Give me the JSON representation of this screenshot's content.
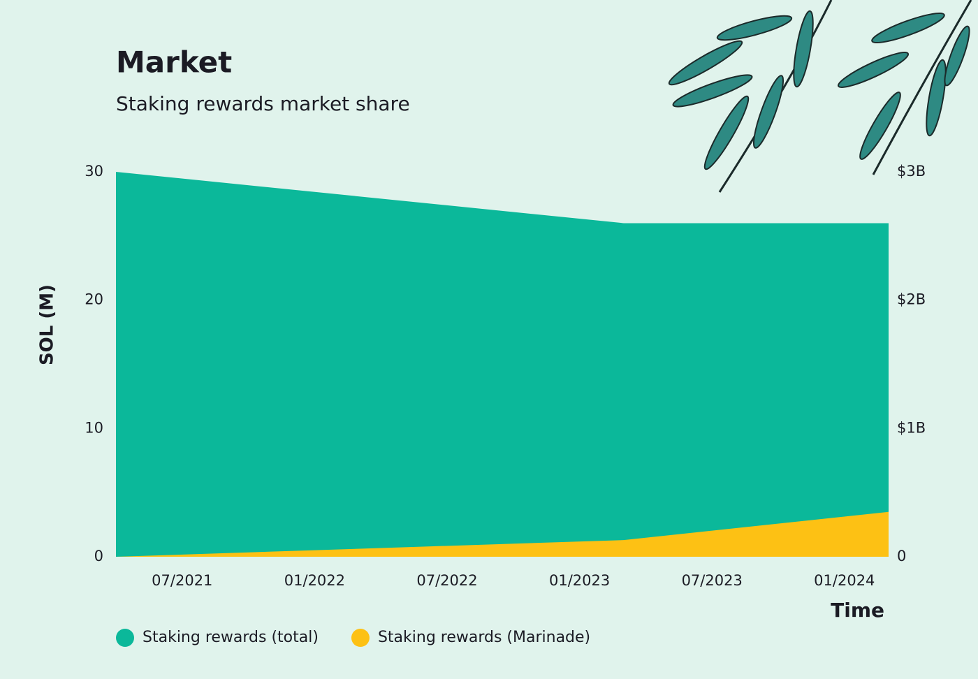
{
  "chart_data": {
    "type": "area",
    "title": "Market",
    "subtitle": "Staking rewards market share",
    "y_label": "SOL (M)",
    "x_label": "Time",
    "x": [
      "04/2021",
      "03/2023",
      "03/2024"
    ],
    "xlim": [
      "04/2021",
      "03/2024"
    ],
    "xticks": [
      "07/2021",
      "01/2022",
      "07/2022",
      "01/2023",
      "07/2023",
      "01/2024"
    ],
    "ylim": [
      0,
      30
    ],
    "yticks": [
      0,
      10,
      20,
      30
    ],
    "y2lim": [
      0,
      3000000000
    ],
    "y2ticks": [
      0,
      {
        "value": 1000000000,
        "label": "$1B"
      },
      {
        "value": 2000000000,
        "label": "$2B"
      },
      {
        "value": 3000000000,
        "label": "$3B"
      }
    ],
    "grid": false,
    "legend": "bottom",
    "series": [
      {
        "name": "Staking rewards (total)",
        "color": "#0bb89a",
        "values": [
          30,
          26,
          26
        ]
      },
      {
        "name": "Staking rewards (Marinade)",
        "color": "#fdc114",
        "values": [
          0,
          1.3,
          3.5
        ]
      }
    ]
  }
}
